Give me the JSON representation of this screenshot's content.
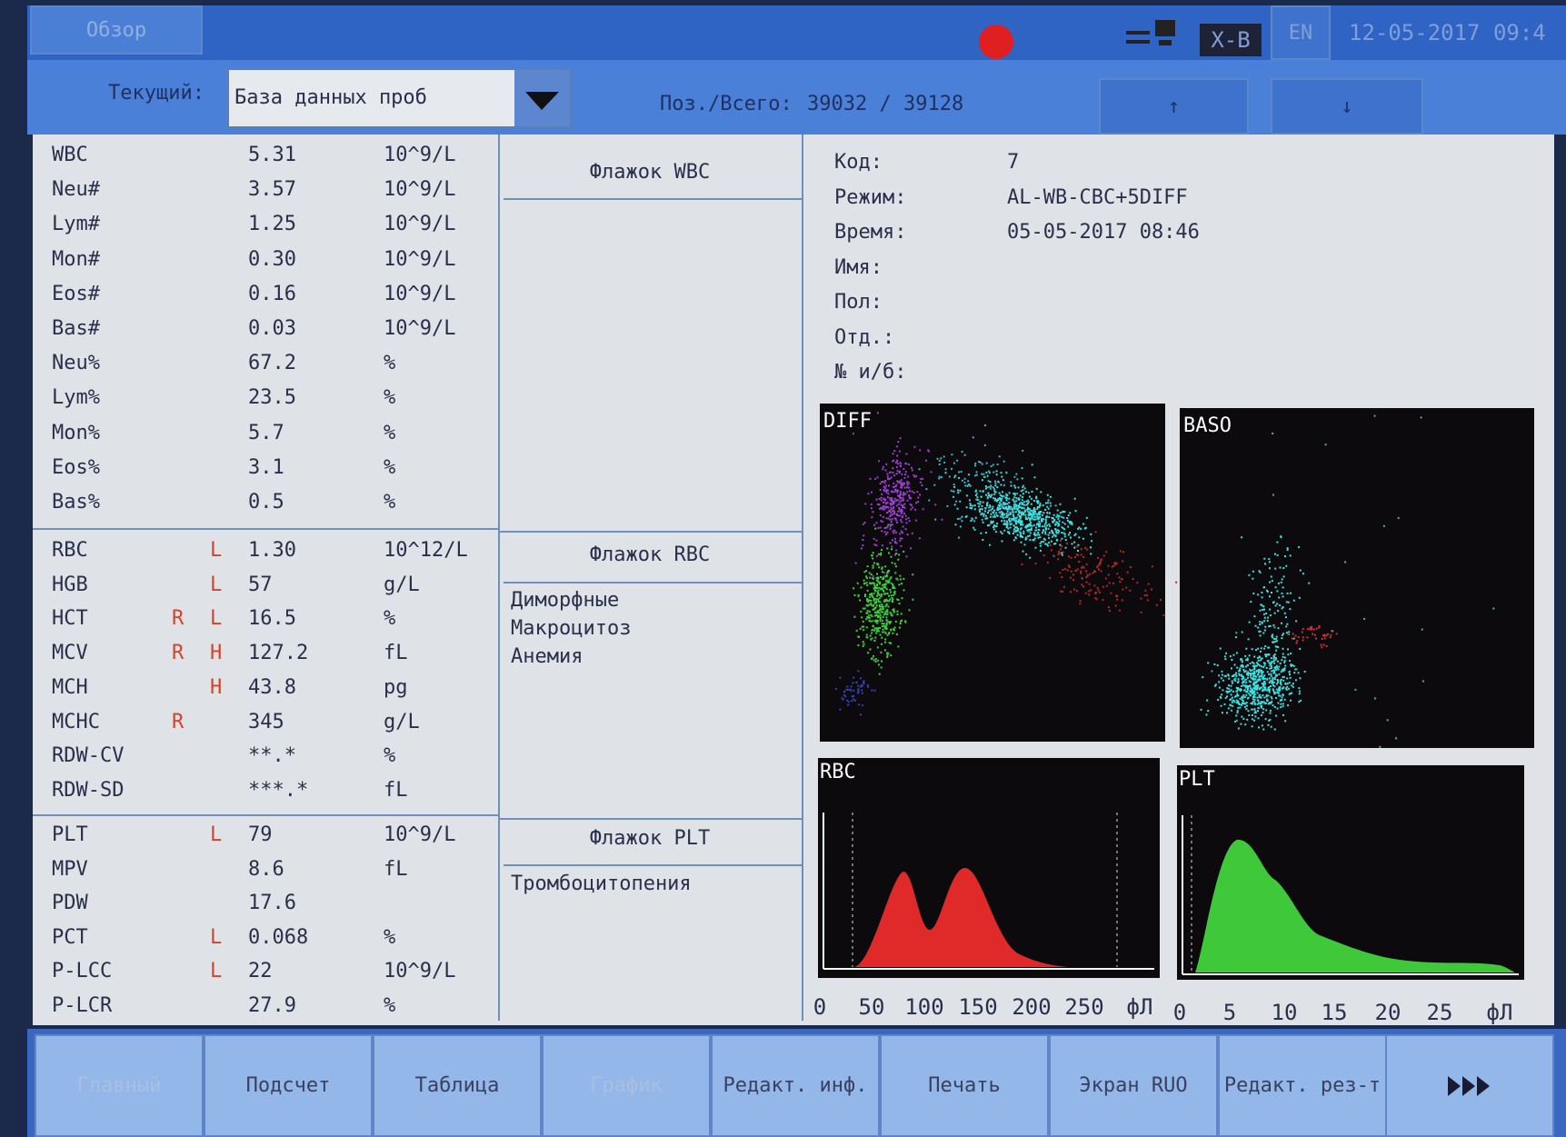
{
  "topbar": {
    "tab": "Обзор",
    "mode": "X-B",
    "language": "EN",
    "datetime": "12-05-2017 09:4"
  },
  "toolbar": {
    "current_label": "Текущий:",
    "database": "База данных проб",
    "position_label": "Поз./Всего:",
    "position": "39032 / 39128",
    "up": "↑",
    "down": "↓"
  },
  "results": {
    "wbc": [
      {
        "name": "WBC",
        "value": "5.31",
        "unit": "10^9/L"
      },
      {
        "name": "Neu#",
        "value": "3.57",
        "unit": "10^9/L"
      },
      {
        "name": "Lym#",
        "value": "1.25",
        "unit": "10^9/L"
      },
      {
        "name": "Mon#",
        "value": "0.30",
        "unit": "10^9/L"
      },
      {
        "name": "Eos#",
        "value": "0.16",
        "unit": "10^9/L"
      },
      {
        "name": "Bas#",
        "value": "0.03",
        "unit": "10^9/L"
      },
      {
        "name": "Neu%",
        "value": "67.2",
        "unit": "%"
      },
      {
        "name": "Lym%",
        "value": "23.5",
        "unit": "%"
      },
      {
        "name": "Mon%",
        "value": "5.7",
        "unit": "%"
      },
      {
        "name": "Eos%",
        "value": "3.1",
        "unit": "%"
      },
      {
        "name": "Bas%",
        "value": "0.5",
        "unit": "%"
      }
    ],
    "rbc": [
      {
        "name": "RBC",
        "lh": "L",
        "value": "1.30",
        "unit": "10^12/L"
      },
      {
        "name": "HGB",
        "lh": "L",
        "value": "57",
        "unit": "g/L"
      },
      {
        "name": "HCT",
        "r": "R",
        "lh": "L",
        "value": "16.5",
        "unit": "%"
      },
      {
        "name": "MCV",
        "r": "R",
        "lh": "H",
        "value": "127.2",
        "unit": "fL"
      },
      {
        "name": "MCH",
        "lh": "H",
        "value": "43.8",
        "unit": "pg"
      },
      {
        "name": "MCHC",
        "r": "R",
        "value": "345",
        "unit": "g/L"
      },
      {
        "name": "RDW-CV",
        "value": "**.*",
        "unit": "%"
      },
      {
        "name": "RDW-SD",
        "value": "***.*",
        "unit": "fL"
      }
    ],
    "plt": [
      {
        "name": "PLT",
        "lh": "L",
        "value": "79",
        "unit": "10^9/L"
      },
      {
        "name": "MPV",
        "value": "8.6",
        "unit": "fL"
      },
      {
        "name": "PDW",
        "value": "17.6"
      },
      {
        "name": "PCT",
        "lh": "L",
        "value": "0.068",
        "unit": "%"
      },
      {
        "name": "P-LCC",
        "lh": "L",
        "value": "22",
        "unit": "10^9/L"
      },
      {
        "name": "P-LCR",
        "value": "27.9",
        "unit": "%"
      }
    ]
  },
  "flags": {
    "wbc": {
      "title": "Флажок WBC",
      "items": []
    },
    "rbc": {
      "title": "Флажок RBC",
      "items": [
        "Диморфные",
        "Макроцитоз",
        "Анемия"
      ]
    },
    "plt": {
      "title": "Флажок PLT",
      "items": [
        "Тромбоцитопения"
      ]
    }
  },
  "info": [
    {
      "label": "Код:",
      "value": "7"
    },
    {
      "label": "Режим:",
      "value": "AL-WB-CBC+5DIFF"
    },
    {
      "label": "Время:",
      "value": "05-05-2017 08:46"
    },
    {
      "label": "Имя:"
    },
    {
      "label": "Пол:"
    },
    {
      "label": "Отд.:"
    },
    {
      "label": "№ и/б:"
    }
  ],
  "plots": {
    "diff": "DIFF",
    "baso": "BASO",
    "rbc": "RBC",
    "plt": "PLT",
    "rbc_axis": [
      "0",
      "50",
      "100",
      "150",
      "200",
      "250",
      "фЛ"
    ],
    "plt_axis": [
      "0",
      "5",
      "10",
      "15",
      "20",
      "25",
      "фЛ"
    ]
  },
  "buttons": [
    "Главный",
    "Подсчет",
    "Таблица",
    "График",
    "Редакт. инф.",
    "Печать",
    "Экран RUO",
    "Редакт. рез-т"
  ]
}
